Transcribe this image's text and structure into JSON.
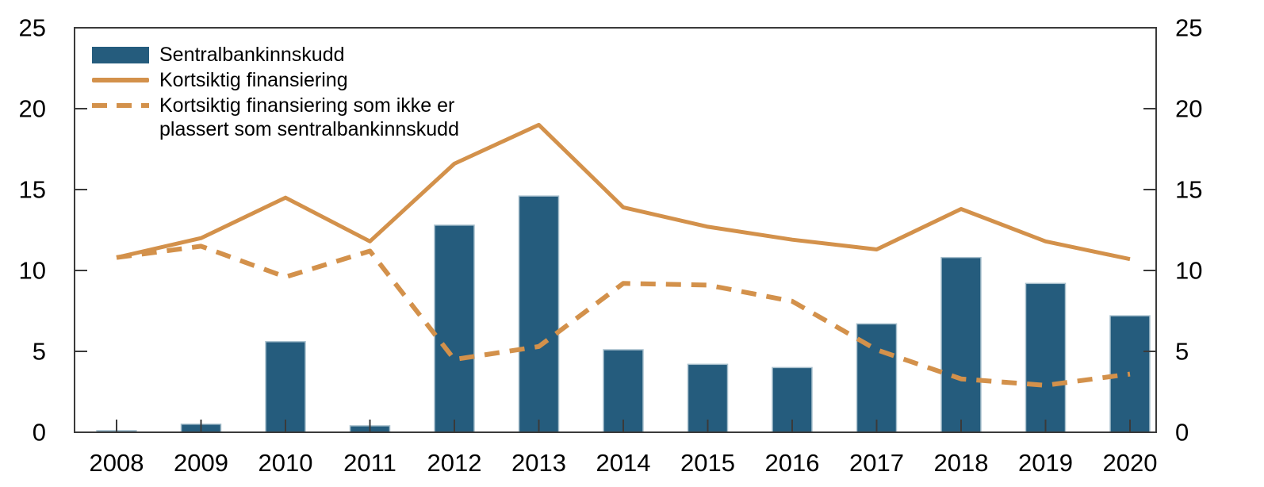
{
  "chart_data": {
    "type": "bar",
    "title": "",
    "xlabel": "",
    "ylabel": "",
    "categories": [
      "2008",
      "2009",
      "2010",
      "2011",
      "2012",
      "2013",
      "2014",
      "2015",
      "2016",
      "2017",
      "2018",
      "2019",
      "2020"
    ],
    "series": [
      {
        "name": "Sentralbankinnskudd",
        "type": "bar",
        "color": "#255C7D",
        "edge_color": "#A8C0CD",
        "values": [
          0.1,
          0.5,
          5.6,
          0.4,
          12.8,
          14.6,
          5.1,
          4.2,
          4.0,
          6.7,
          10.8,
          9.2,
          7.2
        ]
      },
      {
        "name": "Kortsiktig finansiering",
        "type": "line",
        "style": "solid",
        "color": "#D3914B",
        "values": [
          10.8,
          12.0,
          14.5,
          11.8,
          16.6,
          19.0,
          13.9,
          12.7,
          11.9,
          11.3,
          13.8,
          11.8,
          10.7
        ]
      },
      {
        "name": "Kortsiktig finansiering som ikke er plassert som sentralbankinnskudd",
        "type": "line",
        "style": "dashed",
        "color": "#D3914B",
        "values": [
          10.8,
          11.5,
          9.6,
          11.2,
          4.5,
          5.3,
          9.2,
          9.1,
          8.1,
          5.1,
          3.3,
          2.9,
          3.6
        ]
      }
    ],
    "ylim": [
      0,
      25
    ],
    "y_ticks": [
      0,
      5,
      10,
      15,
      20,
      25
    ],
    "dual_y_axis": true,
    "grid": false,
    "legend_position": "top-left",
    "axis_color": "#3A3A3A",
    "tick_label_color": "#000000"
  }
}
